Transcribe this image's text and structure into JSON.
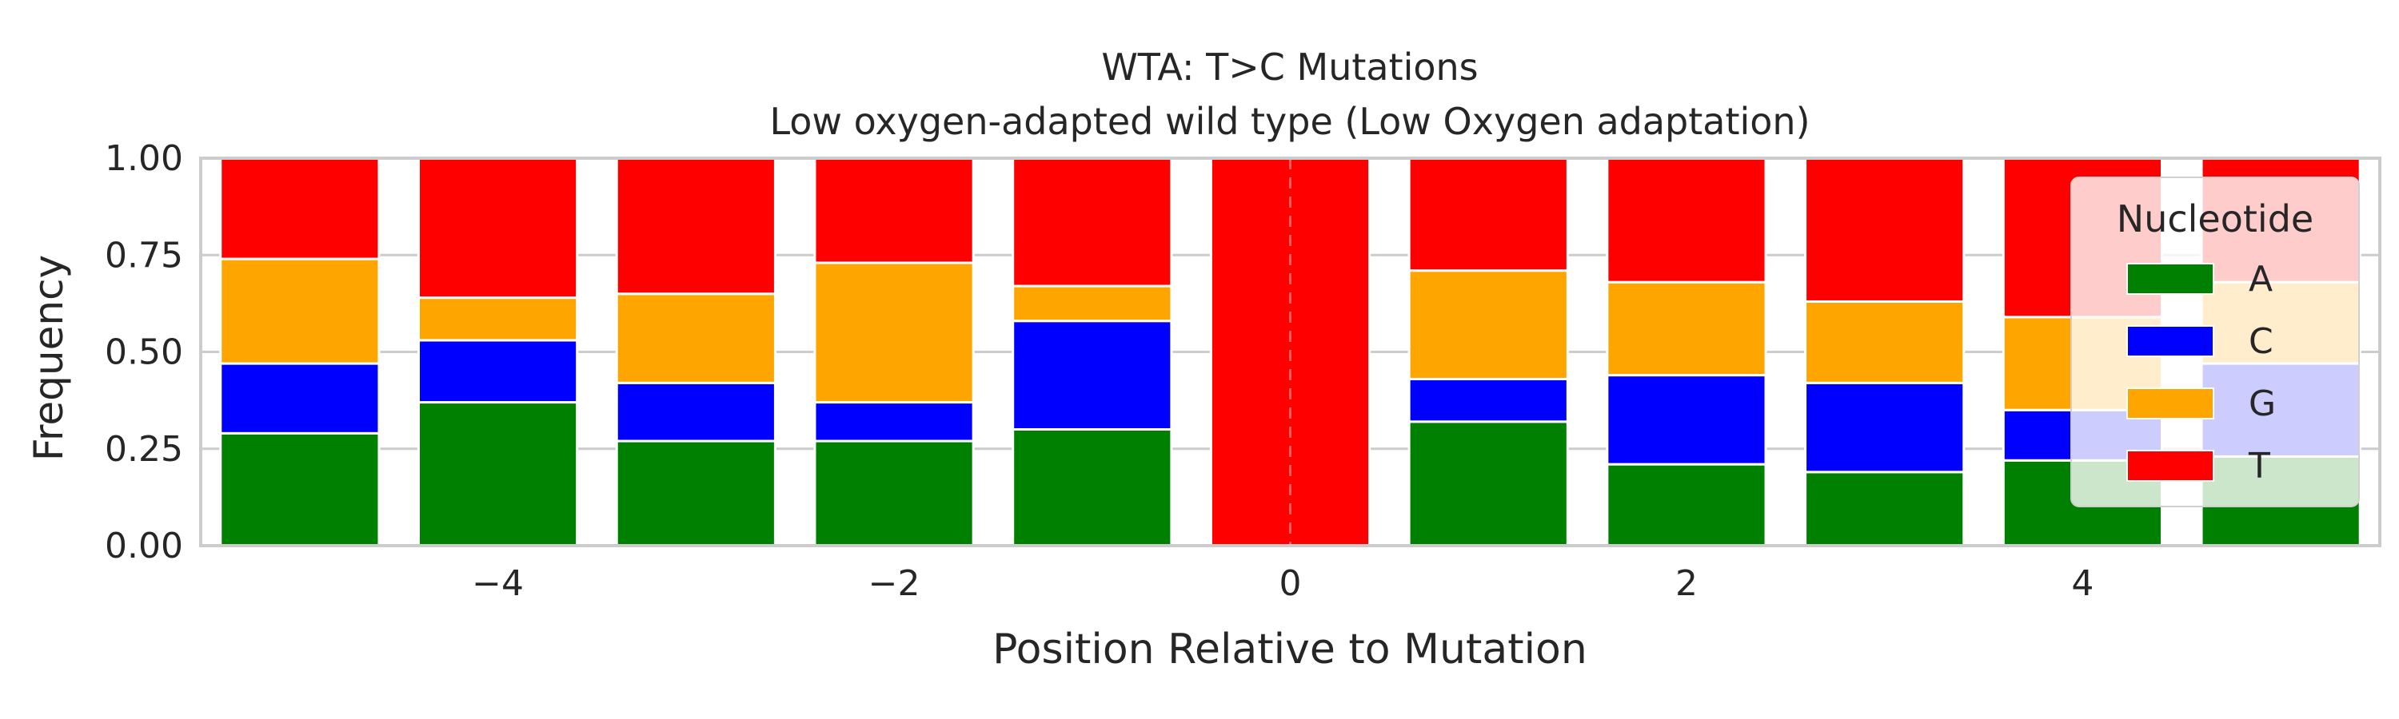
{
  "chart_data": {
    "type": "bar",
    "stacked": true,
    "title": "WTA: T>C Mutations",
    "subtitle": "Low oxygen-adapted wild type (Low Oxygen adaptation)",
    "xlabel": "Position Relative to Mutation",
    "ylabel": "Frequency",
    "x": [
      -5,
      -4,
      -3,
      -2,
      -1,
      0,
      1,
      2,
      3,
      4,
      5
    ],
    "xlim": [
      -5.5,
      5.5
    ],
    "ylim": [
      0,
      1
    ],
    "xticks": [
      -4,
      -2,
      0,
      2,
      4
    ],
    "xtick_labels": [
      "−4",
      "−2",
      "0",
      "2",
      "4"
    ],
    "yticks": [
      0,
      0.25,
      0.5,
      0.75,
      1.0
    ],
    "ytick_labels": [
      "0.00",
      "0.25",
      "0.50",
      "0.75",
      "1.00"
    ],
    "grid": true,
    "reference_line": {
      "x": 0,
      "style": "dashed",
      "color": "#ff8080"
    },
    "series": [
      {
        "name": "A",
        "color": "#008000",
        "values": [
          0.29,
          0.37,
          0.27,
          0.27,
          0.3,
          0.0,
          0.32,
          0.21,
          0.19,
          0.22,
          0.23
        ]
      },
      {
        "name": "C",
        "color": "#0000ff",
        "values": [
          0.18,
          0.16,
          0.15,
          0.1,
          0.28,
          0.0,
          0.11,
          0.23,
          0.23,
          0.13,
          0.24
        ]
      },
      {
        "name": "G",
        "color": "#ffa500",
        "values": [
          0.27,
          0.11,
          0.23,
          0.36,
          0.09,
          0.0,
          0.28,
          0.24,
          0.21,
          0.24,
          0.21
        ]
      },
      {
        "name": "T",
        "color": "#ff0000",
        "values": [
          0.26,
          0.36,
          0.35,
          0.27,
          0.33,
          1.0,
          0.29,
          0.32,
          0.37,
          0.41,
          0.32
        ]
      }
    ],
    "legend": {
      "title": "Nucleotide",
      "placement": "right"
    }
  }
}
